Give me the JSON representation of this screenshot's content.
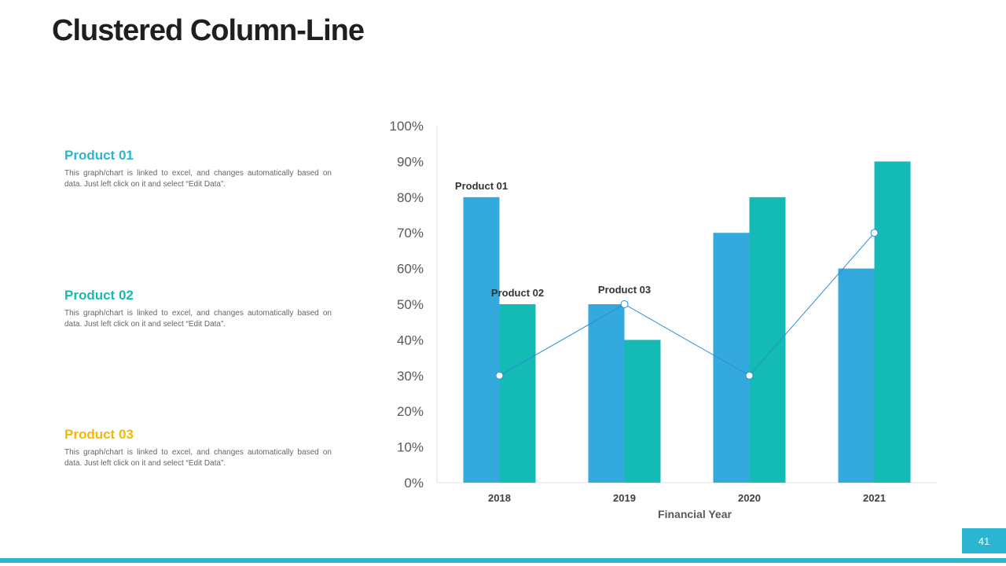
{
  "slide": {
    "title": "Clustered Column-Line",
    "page_number": "41"
  },
  "colors": {
    "accent": "#2bb5d0",
    "product01": "#33a9dd",
    "product02": "#13bbb4",
    "product03_title": "#f5b800",
    "line": "#2a8fd0"
  },
  "descriptions": [
    {
      "title": "Product 01",
      "text": "This graph/chart is linked to excel, and changes automatically  based on data. Just left click on it and select “Edit Data”.",
      "color": "#2bb5d0"
    },
    {
      "title": "Product 02",
      "text": "This graph/chart is linked to excel, and changes automatically  based on data. Just left click on it and select “Edit Data”.",
      "color": "#13bbb4"
    },
    {
      "title": "Product 03",
      "text": "This graph/chart is linked to excel, and changes automatically  based on data. Just left click on it and select “Edit Data”.",
      "color": "#f5b800"
    }
  ],
  "chart_data": {
    "type": "bar",
    "categories": [
      "2018",
      "2019",
      "2020",
      "2021"
    ],
    "series": [
      {
        "name": "Product 01",
        "kind": "bar",
        "values": [
          80,
          50,
          70,
          60
        ],
        "color": "#33a9dd"
      },
      {
        "name": "Product 02",
        "kind": "bar",
        "values": [
          50,
          40,
          80,
          90
        ],
        "color": "#13bbb4"
      },
      {
        "name": "Product 03",
        "kind": "line",
        "values": [
          30,
          50,
          30,
          70
        ],
        "color": "#2a8fd0"
      }
    ],
    "xlabel": "Financial Year",
    "ylabel": "",
    "ylim": [
      0,
      100
    ],
    "yticks": [
      "0%",
      "10%",
      "20%",
      "30%",
      "40%",
      "50%",
      "60%",
      "70%",
      "80%",
      "90%",
      "100%"
    ],
    "grid": false,
    "data_labels": [
      {
        "text": "Product 01",
        "series": 0,
        "category": 0
      },
      {
        "text": "Product 02",
        "series": 1,
        "category": 0
      },
      {
        "text": "Product 03",
        "series": 2,
        "category": 1
      }
    ]
  }
}
